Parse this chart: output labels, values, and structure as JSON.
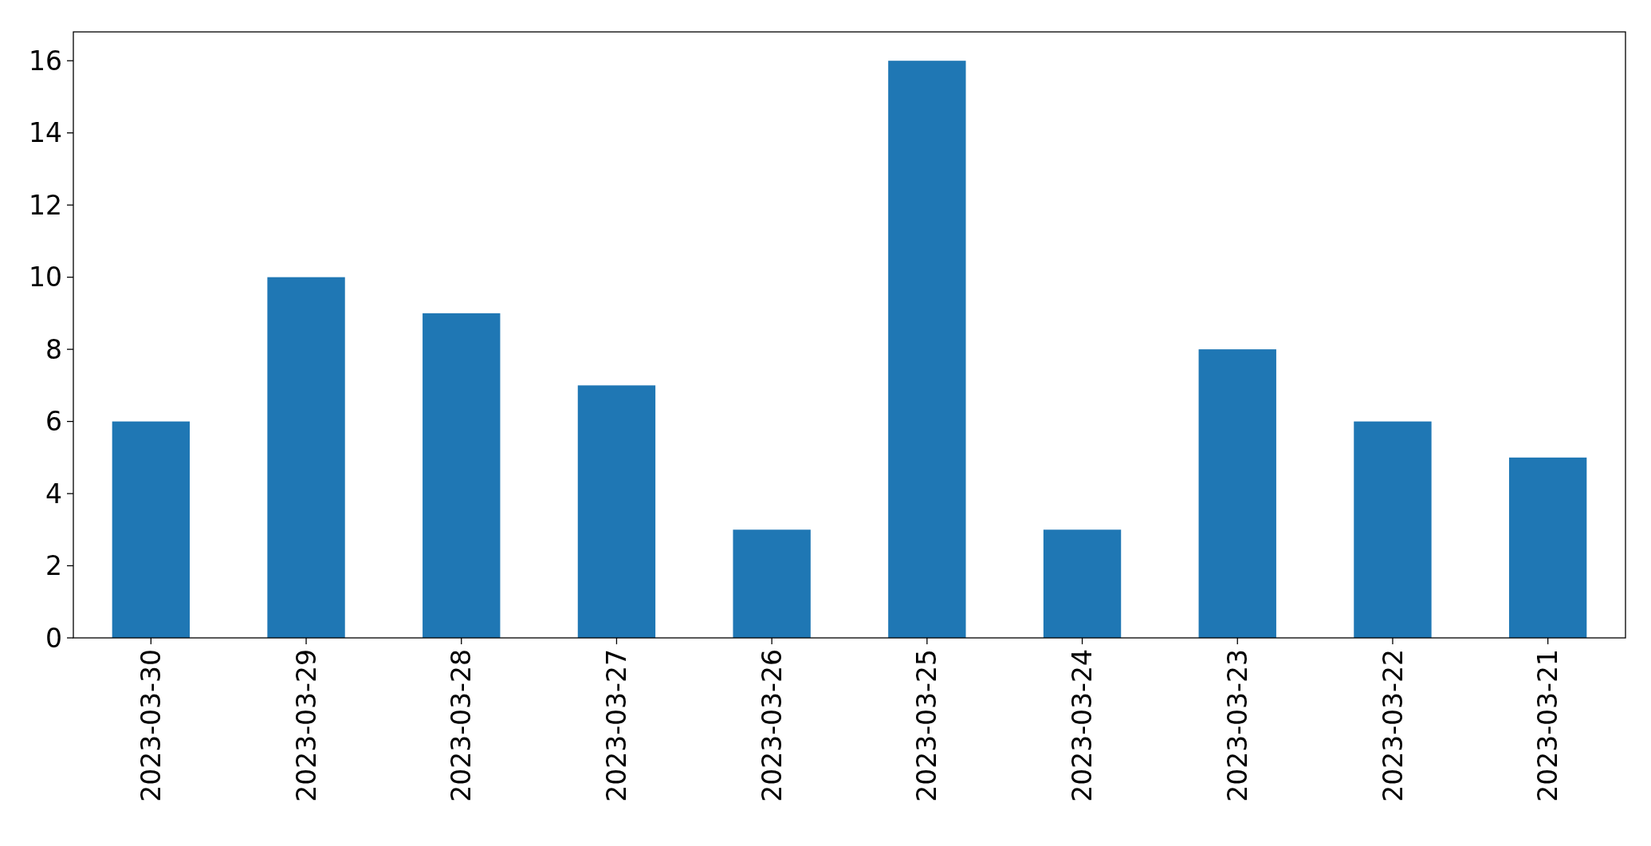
{
  "chart_data": {
    "type": "bar",
    "categories": [
      "2023-03-30",
      "2023-03-29",
      "2023-03-28",
      "2023-03-27",
      "2023-03-26",
      "2023-03-25",
      "2023-03-24",
      "2023-03-23",
      "2023-03-22",
      "2023-03-21"
    ],
    "values": [
      6,
      10,
      9,
      7,
      3,
      16,
      3,
      8,
      6,
      5
    ],
    "color": "#1f77b4",
    "ylim": [
      0,
      16.8
    ],
    "yticks": [
      0,
      2,
      4,
      6,
      8,
      10,
      12,
      14,
      16
    ],
    "grid": false
  }
}
